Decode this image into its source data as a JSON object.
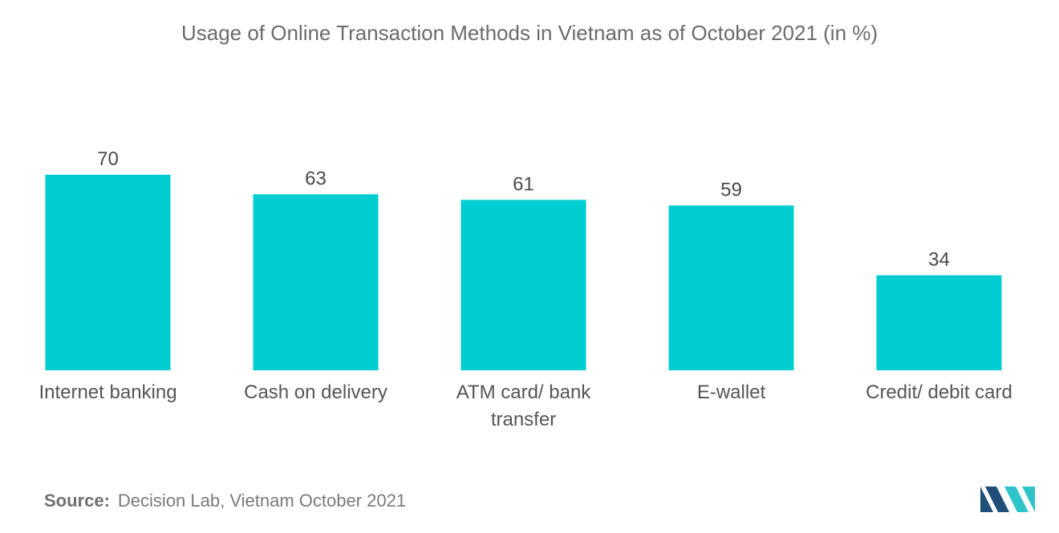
{
  "chart_data": {
    "type": "bar",
    "title": "Usage of Online Transaction Methods in Vietnam as of October 2021 (in %)",
    "categories": [
      [
        "Internet banking"
      ],
      [
        "Cash on delivery"
      ],
      [
        "ATM card/ bank",
        "transfer"
      ],
      [
        "E-wallet"
      ],
      [
        "Credit/ debit card"
      ]
    ],
    "values": [
      70,
      63,
      61,
      59,
      34
    ],
    "data_labels": [
      "70",
      "63",
      "61",
      "59",
      "34"
    ],
    "xlabel": "",
    "ylabel": "",
    "ylim": [
      0,
      70
    ],
    "grid": false,
    "legend": "none",
    "bar_color": "#00cdd1"
  },
  "source": {
    "label": "Source:",
    "text": "Decision Lab, Vietnam October 2021"
  },
  "colors": {
    "logo_dark": "#1f4e79",
    "logo_light": "#2ec4c9"
  },
  "logo": {
    "icon": "mordor-logo-icon"
  }
}
